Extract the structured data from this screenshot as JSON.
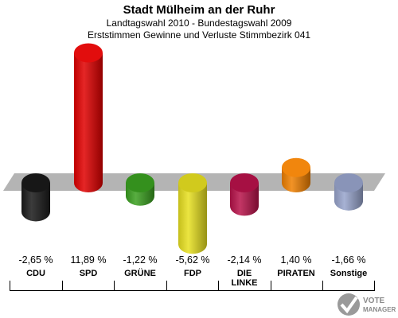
{
  "header": {
    "title": "Stadt Mülheim an der Ruhr",
    "subtitle1": "Landtagswahl 2010 - Bundestagswahl 2009",
    "subtitle2": "Erststimmen Gewinne und Verluste Stimmbezirk 041"
  },
  "chart_data": {
    "type": "bar",
    "title": "Stadt Mülheim an der Ruhr",
    "categories": [
      "CDU",
      "SPD",
      "GRÜNE",
      "FDP",
      "DIE LINKE",
      "PIRATEN",
      "Sonstige"
    ],
    "values": [
      -2.65,
      11.89,
      -1.22,
      -5.62,
      -2.14,
      1.4,
      -1.66
    ],
    "value_labels": [
      "-2,65 %",
      "11,89 %",
      "-1,22 %",
      "-5,62 %",
      "-2,14 %",
      "1,40 %",
      "-1,66 %"
    ],
    "colors": [
      "#1a1a1a",
      "#e00000",
      "#3aa020",
      "#e8e020",
      "#b8124a",
      "#f08000",
      "#98a4cc"
    ],
    "legend": "none",
    "grid": false
  },
  "logo": {
    "line1": "VOTE",
    "line2": "MANAGER"
  }
}
